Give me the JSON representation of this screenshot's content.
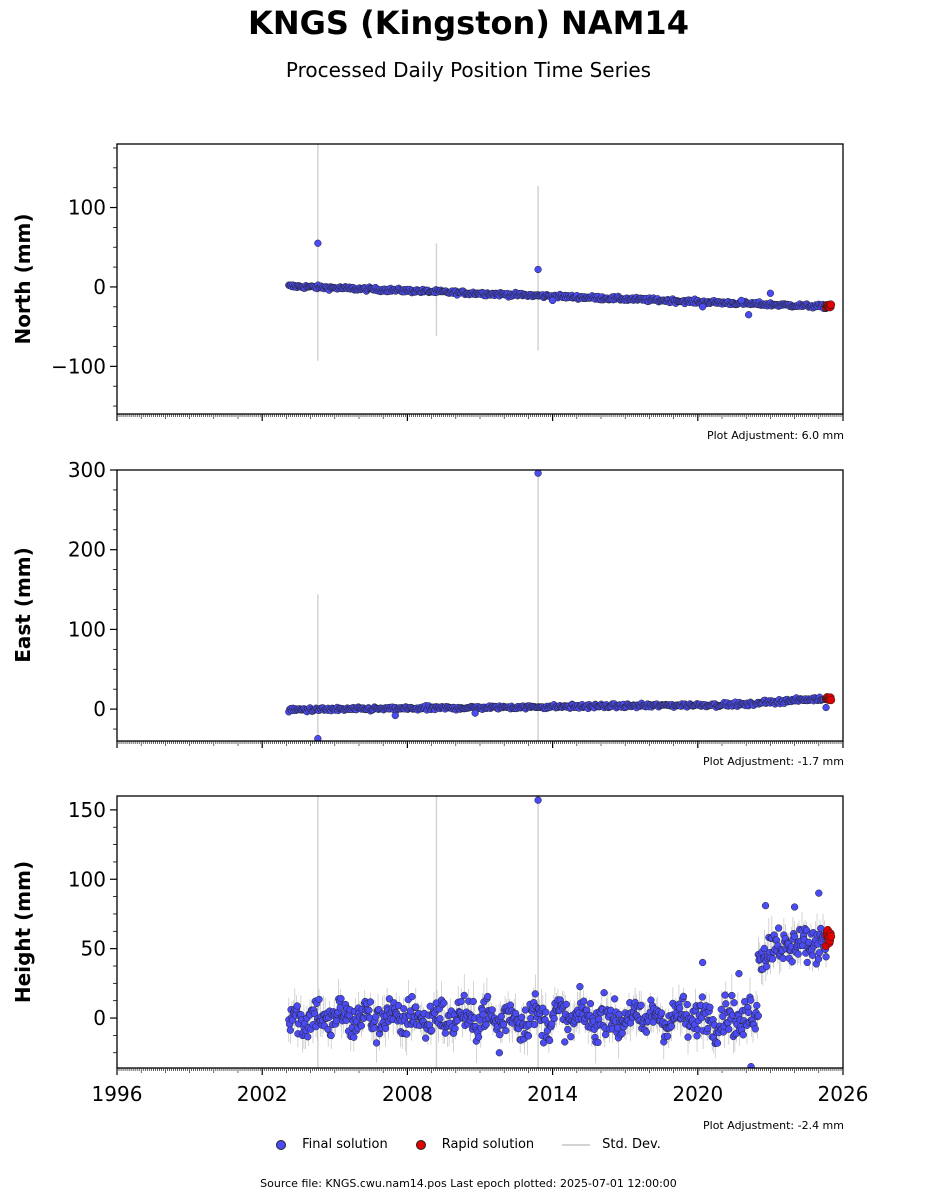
{
  "page": {
    "title": "KNGS (Kingston) NAM14",
    "subtitle": "Processed Daily Position Time Series",
    "source_label": "Source file: KNGS.cwu.nam14.pos  Last epoch plotted: 2025-07-01 12:00:00"
  },
  "legend": {
    "final_label": "Final solution",
    "rapid_label": "Rapid solution",
    "stddev_label": "Std. Dev."
  },
  "colors": {
    "final": "#4b4bf5",
    "rapid": "#e00000",
    "stddev": "#d3d3d3",
    "marker_edge": "#222222"
  },
  "chart_data": [
    {
      "type": "scatter",
      "panel": "north",
      "ylabel": "North (mm)",
      "ylim": [
        -160,
        180
      ],
      "yticks": [
        -100,
        0,
        100
      ],
      "ytick_labels": [
        "−100",
        "0",
        "100"
      ],
      "xlim": [
        1996,
        2026
      ],
      "xticks": [
        1996,
        2002,
        2008,
        2014,
        2020,
        2026
      ],
      "xtick_labels": [],
      "adjustment_label": "Plot Adjustment: 6.0 mm",
      "trend": {
        "start": [
          2003.1,
          1
        ],
        "end": [
          2025.5,
          -25
        ]
      },
      "noise_mm": 2.2,
      "outliers": [
        {
          "x": 2004.3,
          "y": 55
        },
        {
          "x": 2013.4,
          "y": 22
        },
        {
          "x": 2014.0,
          "y": -17
        },
        {
          "x": 2020.2,
          "y": -25
        },
        {
          "x": 2022.1,
          "y": -35
        },
        {
          "x": 2023.0,
          "y": -8
        },
        {
          "x": 2021.8,
          "y": -17
        }
      ],
      "std_bars": [
        {
          "x": 2004.3,
          "lo": -93,
          "hi": 180
        },
        {
          "x": 2009.2,
          "lo": -62,
          "hi": 55
        },
        {
          "x": 2013.4,
          "lo": -80,
          "hi": 127
        }
      ],
      "rapid": {
        "x_start": 2025.3,
        "x_end": 2025.5,
        "y": -24,
        "spread": 2
      }
    },
    {
      "type": "scatter",
      "panel": "east",
      "ylabel": "East (mm)",
      "ylim": [
        -40,
        300
      ],
      "yticks": [
        0,
        100,
        200,
        300
      ],
      "ytick_labels": [
        "0",
        "100",
        "200",
        "300"
      ],
      "xlim": [
        1996,
        2026
      ],
      "xticks": [
        1996,
        2002,
        2008,
        2014,
        2020,
        2026
      ],
      "xtick_labels": [],
      "adjustment_label": "Plot Adjustment: -1.7 mm",
      "trend": {
        "start": [
          2003.1,
          -1
        ],
        "end": [
          2022.3,
          6
        ]
      },
      "trend2": {
        "start": [
          2022.4,
          8
        ],
        "end": [
          2025.2,
          13
        ]
      },
      "noise_mm": 2.2,
      "outliers": [
        {
          "x": 2013.4,
          "y": 296
        },
        {
          "x": 2004.3,
          "y": -37
        },
        {
          "x": 2007.5,
          "y": -8
        },
        {
          "x": 2010.8,
          "y": -5
        },
        {
          "x": 2025.3,
          "y": 2
        }
      ],
      "std_bars": [
        {
          "x": 2004.3,
          "lo": -40,
          "hi": 144
        },
        {
          "x": 2013.4,
          "lo": -40,
          "hi": 300
        }
      ],
      "rapid": {
        "x_start": 2025.3,
        "x_end": 2025.5,
        "y": 13,
        "spread": 2
      }
    },
    {
      "type": "scatter",
      "panel": "height",
      "ylabel": "Height (mm)",
      "ylim": [
        -36,
        160
      ],
      "yticks": [
        0,
        50,
        100,
        150
      ],
      "ytick_labels": [
        "0",
        "50",
        "100",
        "150"
      ],
      "xlim": [
        1996,
        2026
      ],
      "xticks": [
        1996,
        2002,
        2008,
        2014,
        2020,
        2026
      ],
      "xtick_labels": [
        "1996",
        "2002",
        "2008",
        "2014",
        "2020",
        "2026"
      ],
      "adjustment_label": "Plot Adjustment: -2.4 mm",
      "trend": {
        "start": [
          2003.1,
          0
        ],
        "end": [
          2022.5,
          0
        ]
      },
      "trend2": {
        "start": [
          2022.5,
          50
        ],
        "end": [
          2025.3,
          55
        ]
      },
      "noise_mm": 12,
      "outliers": [
        {
          "x": 2013.4,
          "y": 157
        },
        {
          "x": 2020.2,
          "y": 40
        },
        {
          "x": 2021.7,
          "y": 32
        },
        {
          "x": 2011.8,
          "y": -25
        },
        {
          "x": 2022.2,
          "y": -35
        },
        {
          "x": 2025.0,
          "y": 90
        },
        {
          "x": 2022.8,
          "y": 81
        },
        {
          "x": 2024.0,
          "y": 80
        }
      ],
      "std_bars": [
        {
          "x": 2004.3,
          "lo": -36,
          "hi": 160
        },
        {
          "x": 2009.2,
          "lo": -36,
          "hi": 160
        },
        {
          "x": 2013.4,
          "lo": -36,
          "hi": 160
        }
      ],
      "rapid": {
        "x_start": 2025.3,
        "x_end": 2025.5,
        "y": 57,
        "spread": 7
      }
    }
  ]
}
